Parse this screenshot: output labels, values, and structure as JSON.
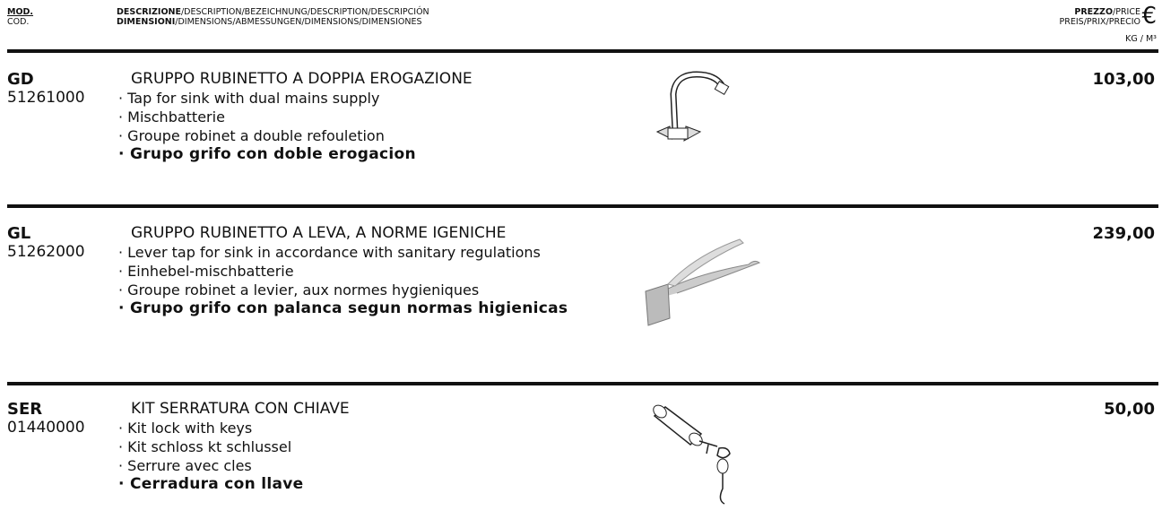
{
  "header": {
    "mod": "MOD.",
    "cod": "COD.",
    "description_bold": "DESCRIZIONE",
    "description_rest": "/DESCRIPTION/BEZEICHNUNG/DESCRIPTION/DESCRIPCIÓN",
    "dimensions_bold": "DIMENSIONI",
    "dimensions_rest": "/DIMENSIONS/ABMESSUNGEN/DIMENSIONS/DIMENSIONES",
    "price_bold": "PREZZO",
    "price_rest": "/PRICE",
    "price_line2": "PREIS/PRIX/PRECIO",
    "currency": "€",
    "unit": "KG / M³"
  },
  "items": [
    {
      "model": "GD",
      "code": "51261000",
      "title": "GRUPPO RUBINETTO A DOPPIA EROGAZIONE",
      "lines": [
        "· Tap for sink with dual mains supply",
        "· Mischbatterie",
        "· Groupe robinet a double refouletion",
        "· Grupo grifo con doble erogacion"
      ],
      "price": "103,00"
    },
    {
      "model": "GL",
      "code": "51262000",
      "title": "GRUPPO RUBINETTO A LEVA, A NORME IGENICHE",
      "lines": [
        "· Lever tap for sink in accordance with sanitary regulations",
        "· Einhebel-mischbatterie",
        "· Groupe robinet a levier, aux normes hygieniques",
        "· Grupo grifo con palanca segun normas higienicas"
      ],
      "price": "239,00"
    },
    {
      "model": "SER",
      "code": "01440000",
      "title": "KIT SERRATURA CON CHIAVE",
      "lines": [
        "· Kit lock with keys",
        "· Kit schloss kt schlussel",
        "· Serrure avec cles",
        "· Cerradura con llave"
      ],
      "price": "50,00"
    }
  ]
}
